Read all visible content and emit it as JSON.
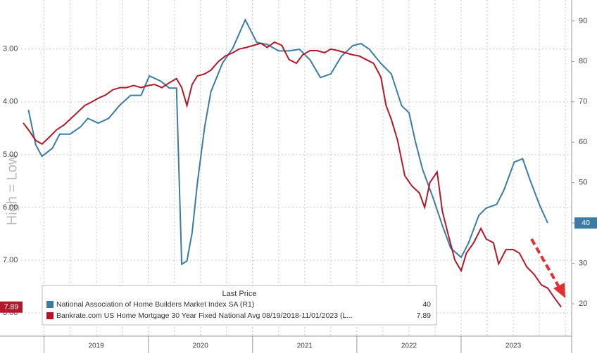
{
  "chart_data": {
    "type": "line",
    "y_label": "High = Low",
    "legend_title": "Last Price",
    "xlim": [
      2018.78,
      2024.06
    ],
    "xticks": [
      2019,
      2020,
      2021,
      2022,
      2023
    ],
    "ylim": [
      8.44,
      2.07
    ],
    "yticks": [
      {
        "value": 3,
        "label": "3.00"
      },
      {
        "value": 4,
        "label": "4.00"
      },
      {
        "value": 5,
        "label": "5.00"
      },
      {
        "value": 6,
        "label": "6.00"
      },
      {
        "value": 7,
        "label": "7.00"
      },
      {
        "value": 8,
        "label": "8.00"
      }
    ],
    "y2lim": [
      12,
      95.2
    ],
    "y2ticks": [
      20,
      30,
      40,
      50,
      60,
      70,
      80,
      90
    ],
    "grid": true,
    "series": [
      {
        "name": "National Association of Home Builders Market Index SA  (R1)",
        "color": "#3a7ca5",
        "axis": "y2",
        "last_price": 40,
        "x": [
          2018.85,
          2018.92,
          2018.98,
          2019.08,
          2019.15,
          2019.25,
          2019.35,
          2019.42,
          2019.52,
          2019.62,
          2019.72,
          2019.83,
          2019.93,
          2020.01,
          2020.12,
          2020.2,
          2020.27,
          2020.32,
          2020.37,
          2020.42,
          2020.47,
          2020.54,
          2020.6,
          2020.71,
          2020.81,
          2020.93,
          2021.04,
          2021.14,
          2021.25,
          2021.35,
          2021.45,
          2021.55,
          2021.65,
          2021.75,
          2021.85,
          2021.96,
          2022.04,
          2022.12,
          2022.23,
          2022.33,
          2022.43,
          2022.5,
          2022.56,
          2022.63,
          2022.73,
          2022.82,
          2022.9,
          2023.0,
          2023.07,
          2023.17,
          2023.24,
          2023.34,
          2023.41,
          2023.51,
          2023.59,
          2023.66,
          2023.75,
          2023.83
        ],
        "values": [
          68,
          59.4,
          56.5,
          58.5,
          62,
          62,
          63.8,
          65.9,
          64.7,
          65.9,
          69,
          71.6,
          71.6,
          76.4,
          75.1,
          73.4,
          73.4,
          29.8,
          30.6,
          37.6,
          49.8,
          63.8,
          72.5,
          79.5,
          83.3,
          90.3,
          84.7,
          84.2,
          82.6,
          82.6,
          83,
          80.4,
          76,
          76.9,
          81.2,
          83.9,
          84.4,
          83,
          79.5,
          76.9,
          69,
          67.3,
          60.3,
          53.3,
          46.3,
          39.4,
          33.8,
          31.5,
          35,
          41.9,
          43.7,
          44.6,
          48.1,
          55.1,
          55.9,
          50.7,
          44.6,
          40
        ]
      },
      {
        "name": "Bankrate.com US Home Mortgage 30 Year Fixed National Avg 08/19/2018-11/01/2023   (L...",
        "color": "#b2182b",
        "axis": "y",
        "last_price": 7.89,
        "x": [
          2018.8,
          2018.85,
          2018.92,
          2018.98,
          2019.05,
          2019.12,
          2019.19,
          2019.25,
          2019.32,
          2019.39,
          2019.46,
          2019.52,
          2019.59,
          2019.66,
          2019.73,
          2019.79,
          2019.86,
          2019.93,
          2020.0,
          2020.06,
          2020.13,
          2020.2,
          2020.27,
          2020.32,
          2020.37,
          2020.42,
          2020.47,
          2020.54,
          2020.6,
          2020.67,
          2020.74,
          2020.81,
          2020.87,
          2020.94,
          2021.01,
          2021.08,
          2021.14,
          2021.21,
          2021.28,
          2021.35,
          2021.42,
          2021.48,
          2021.55,
          2021.62,
          2021.69,
          2021.75,
          2021.82,
          2021.89,
          2021.96,
          2022.02,
          2022.09,
          2022.16,
          2022.23,
          2022.28,
          2022.33,
          2022.39,
          2022.46,
          2022.53,
          2022.6,
          2022.65,
          2022.7,
          2022.77,
          2022.82,
          2022.87,
          2022.94,
          2023.0,
          2023.05,
          2023.12,
          2023.19,
          2023.24,
          2023.31,
          2023.36,
          2023.43,
          2023.5,
          2023.56,
          2023.63,
          2023.7,
          2023.77,
          2023.83,
          2023.9,
          2023.96
        ],
        "values": [
          4.4,
          4.53,
          4.73,
          4.8,
          4.67,
          4.53,
          4.44,
          4.33,
          4.2,
          4.07,
          4.0,
          3.93,
          3.87,
          3.77,
          3.73,
          3.73,
          3.69,
          3.73,
          3.69,
          3.67,
          3.73,
          3.64,
          3.56,
          3.73,
          4.07,
          3.67,
          3.51,
          3.47,
          3.4,
          3.24,
          3.13,
          3.07,
          3.0,
          2.97,
          2.93,
          2.89,
          2.97,
          2.87,
          2.93,
          3.2,
          3.27,
          3.11,
          3.03,
          3.03,
          3.07,
          3.0,
          3.03,
          3.07,
          3.11,
          3.13,
          3.2,
          3.27,
          3.53,
          4.07,
          4.33,
          4.73,
          5.4,
          5.6,
          5.73,
          6.0,
          5.53,
          5.33,
          6.07,
          6.47,
          7.0,
          7.2,
          6.87,
          6.67,
          6.4,
          6.6,
          6.67,
          7.07,
          6.8,
          6.8,
          6.87,
          7.13,
          7.27,
          7.47,
          7.53,
          7.73,
          7.89
        ]
      }
    ]
  }
}
